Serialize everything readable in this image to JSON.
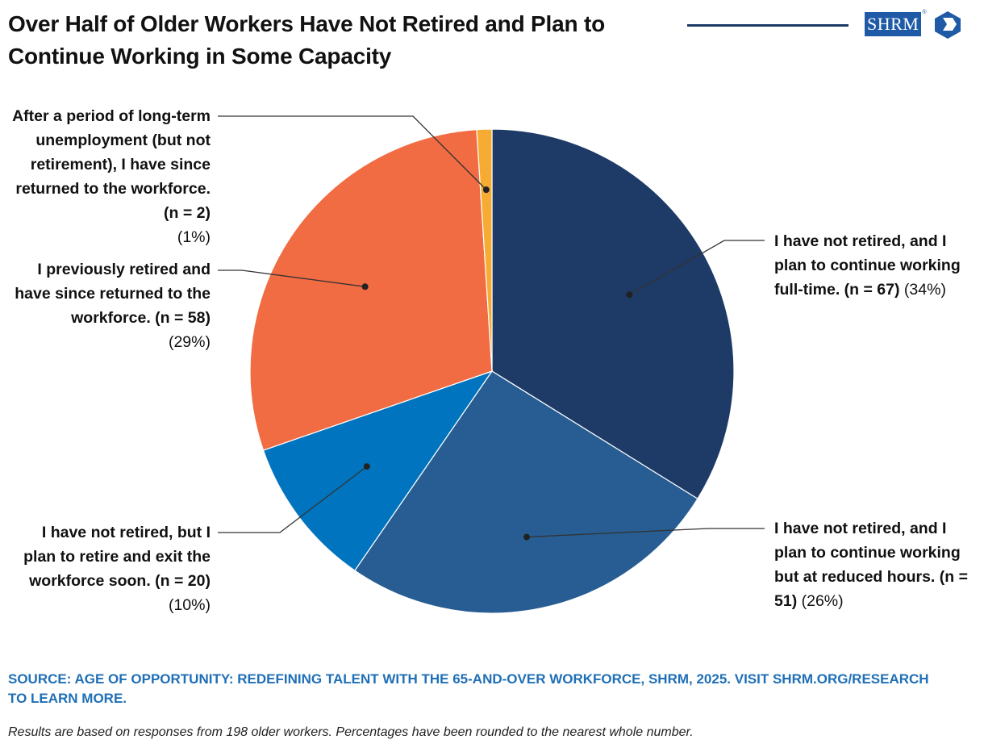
{
  "title": "Over Half of Older Workers Have Not Retired and Plan to Continue Working in Some Capacity",
  "logo_text": "SHRM",
  "logo_mark": "®",
  "source": "SOURCE: AGE OF OPPORTUNITY: REDEFINING TALENT WITH THE 65-AND-OVER WORKFORCE, SHRM, 2025. VISIT SHRM.ORG/RESEARCH TO LEARN MORE.",
  "note": "Results are based on responses from 198 older workers. Percentages have been rounded to the nearest whole number.",
  "chart_data": {
    "type": "pie",
    "title": "Over Half of Older Workers Have Not Retired and Plan to Continue Working in Some Capacity",
    "total_n": 198,
    "slices": [
      {
        "label": "I have not retired, and I plan to continue working full-time. (n = 67)",
        "text": "I have not retired, and I plan to continue working full-time. (n = ",
        "n": "67",
        "n_suffix": ")",
        "pct": "(34%)",
        "value": 67,
        "color": "#1e3a66"
      },
      {
        "label": "I have not retired, and I plan to continue working but at reduced hours. (n = 51)",
        "text": "I have not retired, and I plan to continue working but at reduced hours. (n = ",
        "n": "51",
        "n_suffix": ")",
        "pct": "(26%)",
        "value": 51,
        "color": "#275d92"
      },
      {
        "label": "I have not retired, but I plan to retire and exit the workforce soon. (n = 20)",
        "text": "I have not retired, but I plan to retire and exit the workforce soon. (n = ",
        "n": "20",
        "n_suffix": ")",
        "pct": "(10%)",
        "value": 20,
        "color": "#0074be"
      },
      {
        "label": "I previously retired and have since returned to the workforce. (n = 58)",
        "text": "I previously retired and have since returned to the workforce. (n = ",
        "n": "58",
        "n_suffix": ")",
        "pct": "(29%)",
        "value": 58,
        "color": "#f16b43"
      },
      {
        "label": "After a period of long-term unemployment (but not retirement), I have since returned to the workforce. (n = 2)",
        "text": "After a period of long-term unemployment (but not retirement), I have since returned to the workforce. (n = ",
        "n": "2",
        "n_suffix": ")",
        "pct": "(1%)",
        "value": 2,
        "color": "#f6ac33"
      }
    ]
  }
}
